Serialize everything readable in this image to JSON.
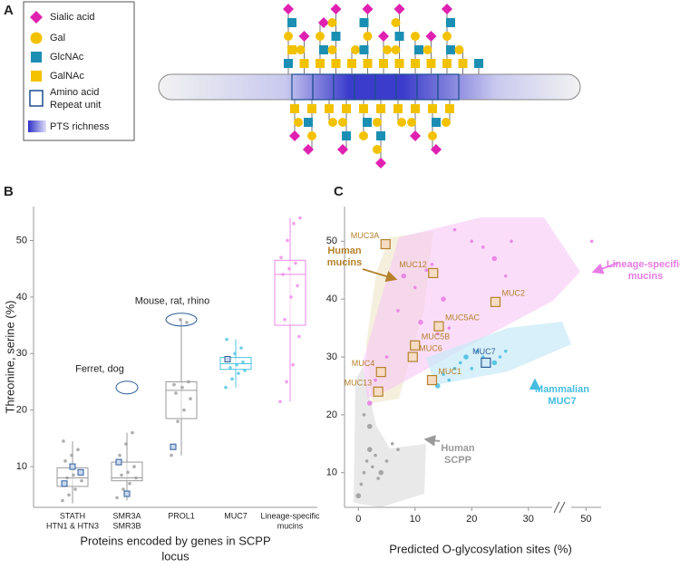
{
  "panel_labels": [
    "A",
    "B",
    "C"
  ],
  "diagram": {
    "legend": [
      [
        "Sialic acid"
      ],
      [
        "Gal"
      ],
      [
        "GlcNAc"
      ],
      [
        "GalNAc"
      ],
      [
        "Amino acid",
        "Repeat unit"
      ],
      [
        "PTS richness"
      ]
    ]
  },
  "chart_data": [
    {
      "type": "box",
      "y_label": "Threonine, serine (%)",
      "x_label": [
        "Proteins encoded by genes in SCPP",
        "locus"
      ],
      "categories": [
        [
          "STATH",
          "HTN1 & HTN3"
        ],
        [
          "SMR3A",
          "SMR3B"
        ],
        [
          "PROL1"
        ],
        [
          "MUC7"
        ],
        [
          "Lineage-specific",
          "mucins"
        ]
      ],
      "colors": [
        "#9a9a9a",
        "#9a9a9a",
        "#9a9a9a",
        "#4cc3e0",
        "#ee88e8"
      ],
      "boxes": [
        {
          "min": 3.5,
          "q1": 6.5,
          "median": 8,
          "q3": 9.8,
          "max": 14.5
        },
        {
          "min": 4,
          "q1": 7.5,
          "median": 8,
          "q3": 10.8,
          "max": 16
        },
        {
          "min": 12,
          "q1": 18.5,
          "median": 23.5,
          "q3": 25,
          "max": 36
        },
        {
          "min": 24,
          "q1": 27.2,
          "median": 28.2,
          "q3": 29.3,
          "max": 32.5
        },
        {
          "min": 21.5,
          "q1": 35,
          "median": 44,
          "q3": 46.5,
          "max": 54
        }
      ],
      "points": [
        [
          4,
          5,
          6,
          7.5,
          8,
          8.5,
          9,
          11,
          12,
          13,
          14.5
        ],
        [
          4.5,
          6,
          7,
          8,
          8.5,
          9,
          10,
          12,
          14,
          16
        ],
        [
          12,
          18,
          20,
          22,
          23,
          24,
          25,
          24.5,
          36,
          35.5
        ],
        [
          24,
          25.5,
          26.5,
          27,
          27.5,
          28,
          28.5,
          29,
          30,
          31,
          32.5
        ],
        [
          21.5,
          25,
          28,
          33,
          36,
          40,
          42,
          44,
          45,
          46,
          47,
          50,
          53,
          54
        ]
      ],
      "human": [
        [
          7,
          10,
          9
        ],
        [
          10.8,
          5.2
        ],
        [
          13.5
        ],
        [
          29
        ],
        []
      ],
      "annotations": [
        {
          "text": "Ferret, dog",
          "category": 1,
          "y": 24
        },
        {
          "text": "Mouse, rat, rhino",
          "category": 2,
          "y": 36
        }
      ],
      "ylim": [
        2.8,
        56
      ],
      "yticks": [
        10,
        20,
        30,
        40,
        50
      ]
    },
    {
      "type": "scatter",
      "x_label": "Predicted O-glycosylation sites (%)",
      "xlim": [
        -1,
        52
      ],
      "xbreak": [
        31,
        49
      ],
      "ylim": [
        4,
        56
      ],
      "xticks": [
        0,
        10,
        20,
        30,
        50
      ],
      "yticks": [
        10,
        20,
        30,
        40,
        50
      ],
      "groups": [
        {
          "label": [
            "Lineage-specific",
            "mucins"
          ],
          "color": "#e77be3",
          "x": [
            2,
            3,
            5,
            7,
            8,
            10,
            12,
            13,
            15,
            17,
            20,
            22,
            24,
            26,
            27,
            16,
            11,
            14,
            51
          ],
          "y": [
            22,
            26,
            30,
            38,
            44,
            42,
            45,
            46,
            40,
            52,
            50,
            49,
            47,
            44,
            50,
            35,
            36,
            34,
            50
          ]
        },
        {
          "label": [
            "Mammalian",
            "MUC7"
          ],
          "color": "#45bde0",
          "x": [
            13,
            15,
            17,
            18,
            19,
            20,
            21,
            22,
            24,
            25,
            26,
            16,
            14
          ],
          "y": [
            26,
            27,
            28,
            29,
            30,
            28,
            31,
            30,
            29,
            30,
            31,
            26,
            25
          ]
        },
        {
          "label": [
            "Human",
            "SCPP"
          ],
          "color": "#9a9a9a",
          "x": [
            0,
            0.5,
            1,
            1.5,
            2,
            2.5,
            3,
            3.5,
            4,
            5,
            6,
            7,
            2,
            1
          ],
          "y": [
            6,
            8,
            10,
            12,
            14,
            11,
            13,
            9,
            10,
            12,
            15,
            14,
            18,
            20
          ]
        },
        {
          "label": [
            "Human",
            "mucins"
          ],
          "color": "#b5812b",
          "x": [],
          "y": []
        }
      ],
      "mucins": [
        {
          "name": "MUC3A",
          "x": 4.8,
          "y": 49.5
        },
        {
          "name": "MUC12",
          "x": 13.2,
          "y": 44.5
        },
        {
          "name": "MUC2",
          "x": 24.2,
          "y": 39.5
        },
        {
          "name": "MUC5AC",
          "x": 14.2,
          "y": 35.3
        },
        {
          "name": "MUC5B",
          "x": 10,
          "y": 32
        },
        {
          "name": "MUC6",
          "x": 9.6,
          "y": 30
        },
        {
          "name": "MUC4",
          "x": 4,
          "y": 27.4
        },
        {
          "name": "MUC1",
          "x": 13,
          "y": 26
        },
        {
          "name": "MUC13",
          "x": 3.5,
          "y": 24
        },
        {
          "name": "MUC7",
          "x": 22.5,
          "y": 29
        }
      ]
    }
  ]
}
